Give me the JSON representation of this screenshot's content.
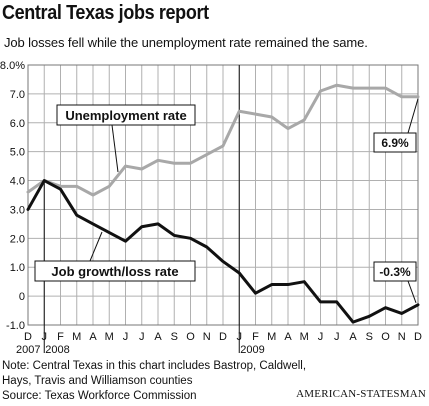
{
  "title": "Central Texas jobs report",
  "subtitle": "Job losses fell while the unemployment rate remained the same.",
  "note_lines": [
    "Note: Central Texas in this chart includes Bastrop, Caldwell,",
    "Hays, Travis and Williamson counties",
    "Source: Texas Workforce Commission"
  ],
  "credit": "AMERICAN-STATESMAN",
  "chart_data": {
    "type": "line",
    "title": "Central Texas jobs report",
    "x": [
      "D",
      "J",
      "F",
      "M",
      "A",
      "M",
      "J",
      "J",
      "A",
      "S",
      "O",
      "N",
      "D",
      "J",
      "F",
      "M",
      "A",
      "M",
      "J",
      "J",
      "A",
      "S",
      "O",
      "N",
      "D"
    ],
    "year_labels": [
      {
        "label": "2007",
        "index": 0
      },
      {
        "label": "2008",
        "index": 1
      },
      {
        "label": "2009",
        "index": 13
      }
    ],
    "ylim": [
      -1.0,
      8.0
    ],
    "y_ticks": [
      "8.0%",
      "7.0",
      "6.0",
      "5.0",
      "4.0",
      "3.0",
      "2.0",
      "1.0",
      "0",
      "-1.0"
    ],
    "y_tick_values": [
      8,
      7,
      6,
      5,
      4,
      3,
      2,
      1,
      0,
      -1
    ],
    "grid": true,
    "series": [
      {
        "name": "Unemployment rate",
        "color": "#a8a8a8",
        "values": [
          3.6,
          4.0,
          3.8,
          3.8,
          3.5,
          3.8,
          4.5,
          4.4,
          4.7,
          4.6,
          4.6,
          4.9,
          5.2,
          6.4,
          6.3,
          6.2,
          5.8,
          6.1,
          7.1,
          7.3,
          7.2,
          7.2,
          7.2,
          6.9,
          6.9
        ],
        "end_label": "6.9%"
      },
      {
        "name": "Job growth/loss rate",
        "color": "#111111",
        "values": [
          3.0,
          4.0,
          3.7,
          2.8,
          2.5,
          2.2,
          1.9,
          2.4,
          2.5,
          2.1,
          2.0,
          1.7,
          1.2,
          0.8,
          0.1,
          0.4,
          0.4,
          0.5,
          -0.2,
          -0.2,
          -0.9,
          -0.7,
          -0.4,
          -0.6,
          -0.3
        ],
        "end_label": "-0.3%"
      }
    ]
  }
}
